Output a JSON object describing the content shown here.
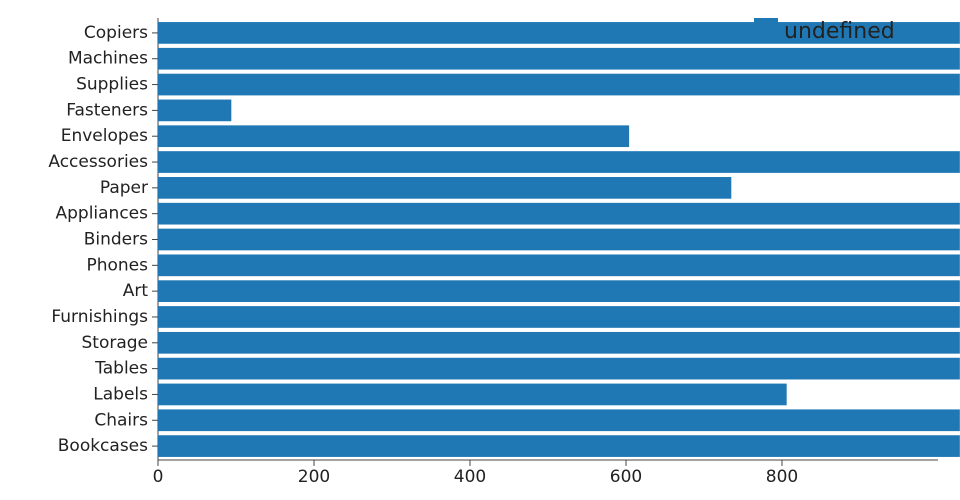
{
  "chart_data": {
    "type": "hbar",
    "categories": [
      "Copiers",
      "Machines",
      "Supplies",
      "Fasteners",
      "Envelopes",
      "Accessories",
      "Paper",
      "Appliances",
      "Binders",
      "Phones",
      "Art",
      "Furnishings",
      "Storage",
      "Tables",
      "Labels",
      "Chairs",
      "Bookcases"
    ],
    "series": [
      {
        "name": "undefined",
        "color": "#1f77b4",
        "values": [
          1028,
          1028,
          1028,
          94,
          604,
          1028,
          735,
          1028,
          1028,
          1028,
          1028,
          1028,
          1028,
          1028,
          806,
          1028,
          1028
        ]
      }
    ],
    "xlim": [
      0,
      1000
    ],
    "xticks": [
      0,
      200,
      400,
      600,
      800
    ],
    "legend": "top-right"
  }
}
